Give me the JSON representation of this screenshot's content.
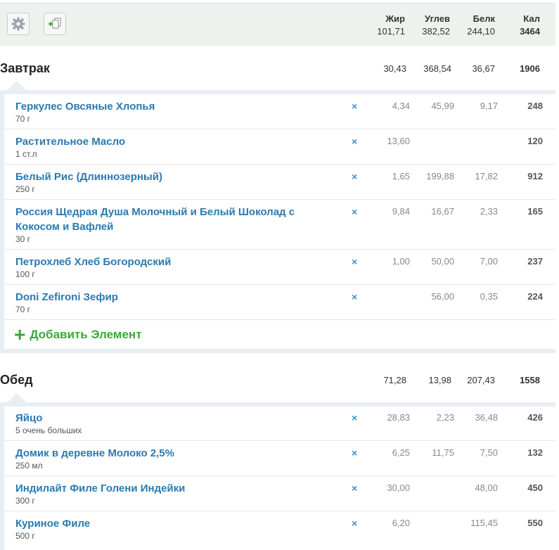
{
  "toolbar": {
    "settings_icon": "gear-icon",
    "copy_icon": "add-copy-icon"
  },
  "header": {
    "fat_label": "Жир",
    "carb_label": "Углев",
    "protein_label": "Белк",
    "cal_label": "Кал",
    "fat_total": "101,71",
    "carb_total": "382,52",
    "protein_total": "244,10",
    "cal_total": "3464"
  },
  "breakfast": {
    "title": "Завтрак",
    "fat": "30,43",
    "carb": "368,54",
    "protein": "36,67",
    "cal": "1906",
    "items": [
      {
        "name": "Геркулес Овсяные Хлопья",
        "portion": "70 г",
        "fat": "4,34",
        "carb": "45,99",
        "protein": "9,17",
        "cal": "248"
      },
      {
        "name": "Растительное Масло",
        "portion": "1 ст.л",
        "fat": "13,60",
        "carb": "",
        "protein": "",
        "cal": "120"
      },
      {
        "name": "Белый Рис (Длиннозерный)",
        "portion": "250 г",
        "fat": "1,65",
        "carb": "199,88",
        "protein": "17,82",
        "cal": "912"
      },
      {
        "name": "Россия Щедрая Душа Молочный и Белый Шоколад с Кокосом и Вафлей",
        "portion": "30 г",
        "fat": "9,84",
        "carb": "16,67",
        "protein": "2,33",
        "cal": "165"
      },
      {
        "name": "Петрохлеб Хлеб Богородский",
        "portion": "100 г",
        "fat": "1,00",
        "carb": "50,00",
        "protein": "7,00",
        "cal": "237"
      },
      {
        "name": "Doni Zefironi Зефир",
        "portion": "70 г",
        "fat": "",
        "carb": "56,00",
        "protein": "0,35",
        "cal": "224"
      }
    ],
    "add_label": "Добавить Элемент"
  },
  "lunch": {
    "title": "Обед",
    "fat": "71,28",
    "carb": "13,98",
    "protein": "207,43",
    "cal": "1558",
    "items": [
      {
        "name": "Яйцо",
        "portion": "5 очень больших",
        "fat": "28,83",
        "carb": "2,23",
        "protein": "36,48",
        "cal": "426"
      },
      {
        "name": "Домик в деревне Молоко 2,5%",
        "portion": "250 мл",
        "fat": "6,25",
        "carb": "11,75",
        "protein": "7,50",
        "cal": "132"
      },
      {
        "name": "Индилайт Филе Голени Индейки",
        "portion": "300 г",
        "fat": "30,00",
        "carb": "",
        "protein": "48,00",
        "cal": "450"
      },
      {
        "name": "Куриное Филе",
        "portion": "500 г",
        "fat": "6,20",
        "carb": "",
        "protein": "115,45",
        "cal": "550"
      }
    ]
  },
  "delete_glyph": "×",
  "colors": {
    "link": "#2a7ab0",
    "add": "#3aa83a",
    "panel": "#e8eef3"
  }
}
